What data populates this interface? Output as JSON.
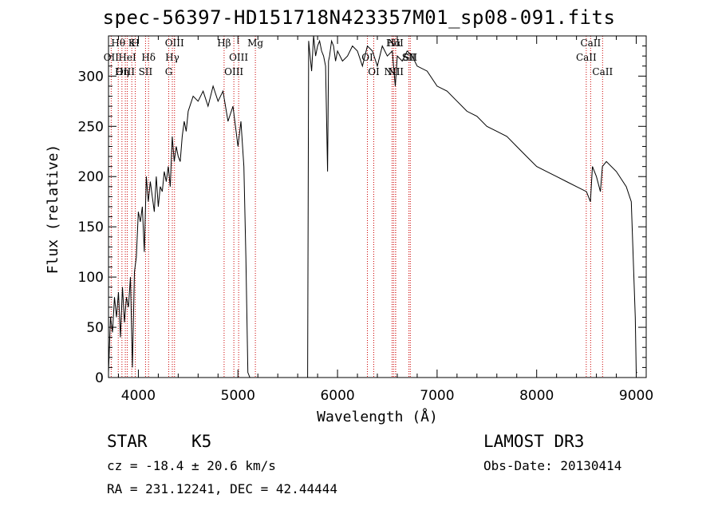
{
  "chart_data": {
    "type": "line",
    "title": "spec-56397-HD151718N423357M01_sp08-091.fits",
    "xlabel": "Wavelength (Å)",
    "ylabel": "Flux (relative)",
    "xlim": [
      3700,
      9100
    ],
    "ylim": [
      0,
      340
    ],
    "xticks": [
      4000,
      5000,
      6000,
      7000,
      8000,
      9000
    ],
    "yticks": [
      0,
      50,
      100,
      150,
      200,
      250,
      300
    ],
    "series": [
      {
        "name": "spectrum",
        "x": [
          3700,
          3720,
          3740,
          3760,
          3780,
          3800,
          3820,
          3840,
          3860,
          3880,
          3900,
          3920,
          3940,
          3960,
          3980,
          4000,
          4020,
          4040,
          4060,
          4080,
          4100,
          4120,
          4140,
          4160,
          4180,
          4200,
          4220,
          4240,
          4260,
          4280,
          4300,
          4320,
          4340,
          4360,
          4380,
          4400,
          4420,
          4440,
          4460,
          4480,
          4500,
          4550,
          4600,
          4650,
          4700,
          4750,
          4800,
          4850,
          4900,
          4950,
          5000,
          5030,
          5060,
          5080,
          5100,
          5120,
          5200,
          5400,
          5600,
          5700,
          5710,
          5720,
          5740,
          5760,
          5780,
          5800,
          5820,
          5840,
          5860,
          5880,
          5900,
          5910,
          5920,
          5940,
          5960,
          5980,
          6000,
          6050,
          6100,
          6150,
          6200,
          6250,
          6300,
          6350,
          6400,
          6450,
          6500,
          6550,
          6580,
          6600,
          6650,
          6700,
          6750,
          6800,
          6900,
          7000,
          7100,
          7200,
          7300,
          7400,
          7500,
          7600,
          7700,
          7800,
          7900,
          8000,
          8100,
          8200,
          8300,
          8400,
          8500,
          8540,
          8560,
          8600,
          8640,
          8660,
          8700,
          8800,
          8900,
          8950,
          8990,
          9000,
          9010
        ],
        "y": [
          5,
          60,
          45,
          80,
          60,
          85,
          40,
          90,
          55,
          80,
          70,
          100,
          10,
          105,
          120,
          165,
          155,
          170,
          125,
          200,
          175,
          195,
          180,
          165,
          200,
          170,
          190,
          185,
          205,
          195,
          210,
          190,
          240,
          215,
          230,
          220,
          215,
          240,
          255,
          245,
          265,
          280,
          275,
          285,
          270,
          290,
          275,
          285,
          255,
          270,
          230,
          255,
          210,
          120,
          5,
          0,
          0,
          0,
          0,
          0,
          335,
          325,
          305,
          340,
          320,
          330,
          335,
          325,
          320,
          310,
          205,
          315,
          320,
          335,
          330,
          315,
          325,
          315,
          320,
          330,
          325,
          310,
          330,
          325,
          310,
          330,
          320,
          325,
          290,
          320,
          315,
          325,
          320,
          310,
          305,
          290,
          285,
          275,
          265,
          260,
          250,
          245,
          240,
          230,
          220,
          210,
          205,
          200,
          195,
          190,
          185,
          175,
          210,
          200,
          185,
          210,
          215,
          205,
          190,
          175,
          60,
          5,
          5
        ]
      }
    ],
    "line_markers": [
      {
        "label": "Hθ",
        "x": 3798
      },
      {
        "label": "OII",
        "x": 3727
      },
      {
        "label": "OIII",
        "x": 3869
      },
      {
        "label": "K",
        "x": 3934
      },
      {
        "label": "HeI",
        "x": 3889
      },
      {
        "label": "Hη",
        "x": 3835
      },
      {
        "label": "H",
        "x": 3969
      },
      {
        "label": "Hδ",
        "x": 4102
      },
      {
        "label": "SII",
        "x": 4072
      },
      {
        "label": "OIII",
        "x": 4363
      },
      {
        "label": "Hγ",
        "x": 4341
      },
      {
        "label": "G",
        "x": 4305
      },
      {
        "label": "Hβ",
        "x": 4861
      },
      {
        "label": "OIII",
        "x": 5007
      },
      {
        "label": "OIII",
        "x": 4959
      },
      {
        "label": "Mg",
        "x": 5175
      },
      {
        "label": "OI",
        "x": 6300
      },
      {
        "label": "OI",
        "x": 6364
      },
      {
        "label": "Hα",
        "x": 6563
      },
      {
        "label": "SII",
        "x": 6717
      },
      {
        "label": "NII",
        "x": 6548
      },
      {
        "label": "NII",
        "x": 6583
      },
      {
        "label": "SII",
        "x": 6731
      },
      {
        "label": "NII",
        "x": 6584
      },
      {
        "label": "CaII",
        "x": 8542
      },
      {
        "label": "CaII",
        "x": 8498
      },
      {
        "label": "CaII",
        "x": 8662
      }
    ]
  },
  "info": {
    "class": "STAR",
    "subclass": "K5",
    "survey": "LAMOST DR3",
    "cz": "cz = -18.4 ± 20.6 km/s",
    "obs_date": "Obs-Date: 20130414",
    "radec": "RA = 231.12241, DEC =  42.44444"
  },
  "colors": {
    "axis": "#000000",
    "marker": "#cc0000"
  }
}
